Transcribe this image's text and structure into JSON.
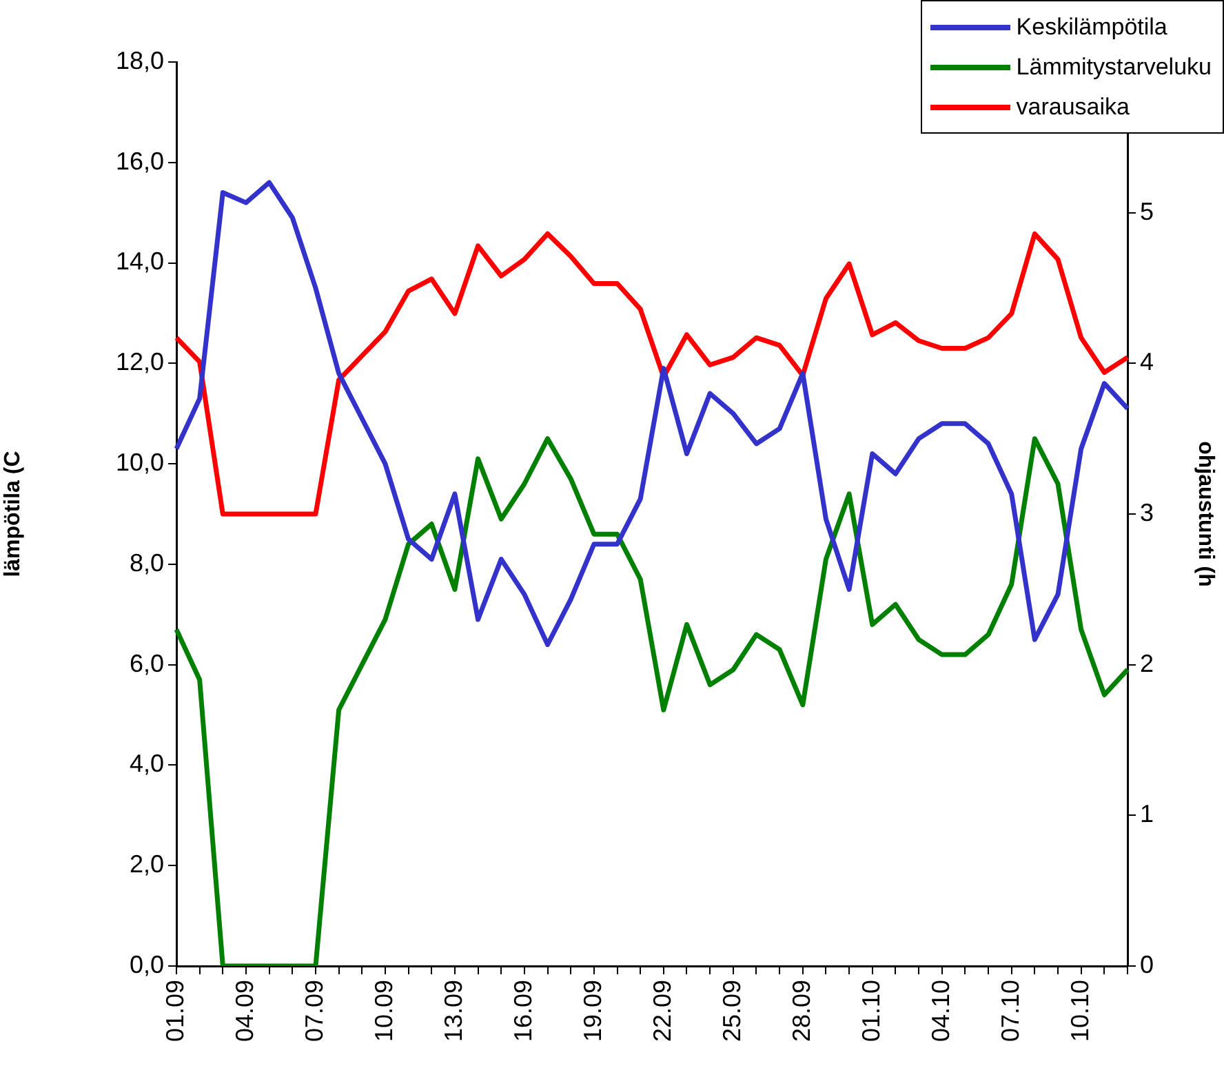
{
  "chart_data": {
    "type": "line",
    "ylabel": "lämpötila (C",
    "y2label": "ohjaustunti (h",
    "categories": [
      "01.09",
      null,
      null,
      "04.09",
      null,
      null,
      "07.09",
      null,
      null,
      "10.09",
      null,
      null,
      "13.09",
      null,
      null,
      "16.09",
      null,
      null,
      "19.09",
      null,
      null,
      "22.09",
      null,
      null,
      "25.09",
      null,
      null,
      "28.09",
      null,
      null,
      "01.10",
      null,
      null,
      "04.10",
      null,
      null,
      "07.10",
      null,
      null,
      "10.10",
      null,
      null
    ],
    "series": [
      {
        "name": "Keskilämpötila",
        "color": "#3333cc",
        "values": [
          10.3,
          11.3,
          15.4,
          15.2,
          15.6,
          14.9,
          13.5,
          11.8,
          10.9,
          10.0,
          8.5,
          8.1,
          9.4,
          6.9,
          8.1,
          7.4,
          6.4,
          7.3,
          8.4,
          8.4,
          9.3,
          11.9,
          10.2,
          11.4,
          11.0,
          10.4,
          10.7,
          11.8,
          8.9,
          7.5,
          10.2,
          9.8,
          10.5,
          10.8,
          10.8,
          10.4,
          9.4,
          6.5,
          7.4,
          10.3,
          11.6,
          11.1
        ]
      },
      {
        "name": "Lämmitystarveluku",
        "color": "#008000",
        "values": [
          6.7,
          5.7,
          0,
          0,
          0,
          0,
          0,
          5.1,
          6.0,
          6.9,
          8.4,
          8.8,
          7.5,
          10.1,
          8.9,
          9.6,
          10.5,
          9.7,
          8.6,
          8.6,
          7.7,
          5.1,
          6.8,
          5.6,
          5.9,
          6.6,
          6.3,
          5.2,
          8.1,
          9.4,
          6.8,
          7.2,
          6.5,
          6.2,
          6.2,
          6.6,
          7.6,
          10.5,
          9.6,
          6.7,
          5.4,
          5.9
        ]
      },
      {
        "name": "varausaika",
        "color": "#ff0000",
        "axis": "y2",
        "values": [
          4.17,
          4.01,
          3.0,
          3.0,
          3.0,
          3.0,
          3.0,
          3.89,
          4.05,
          4.21,
          4.48,
          4.56,
          4.33,
          4.78,
          4.58,
          4.69,
          4.86,
          4.71,
          4.53,
          4.53,
          4.36,
          3.91,
          4.19,
          3.99,
          4.04,
          4.17,
          4.12,
          3.92,
          4.43,
          4.66,
          4.19,
          4.27,
          4.15,
          4.1,
          4.1,
          4.17,
          4.33,
          4.86,
          4.69,
          4.17,
          3.94,
          4.04
        ]
      }
    ],
    "ylim": [
      0,
      18
    ],
    "yticks": [
      {
        "value": 0,
        "label": "0,0"
      },
      {
        "value": 2,
        "label": "2,0"
      },
      {
        "value": 4,
        "label": "4,0"
      },
      {
        "value": 6,
        "label": "6,0"
      },
      {
        "value": 8,
        "label": "8,0"
      },
      {
        "value": 10,
        "label": "10,0"
      },
      {
        "value": 12,
        "label": "12,0"
      },
      {
        "value": 14,
        "label": "14,0"
      },
      {
        "value": 16,
        "label": "16,0"
      },
      {
        "value": 18,
        "label": "18,0"
      }
    ],
    "y2lim": [
      0,
      6
    ],
    "y2ticks": [
      0,
      1,
      2,
      3,
      4,
      5
    ],
    "grid": false,
    "legend": "top right",
    "marker": "none",
    "line_style": "solid"
  }
}
